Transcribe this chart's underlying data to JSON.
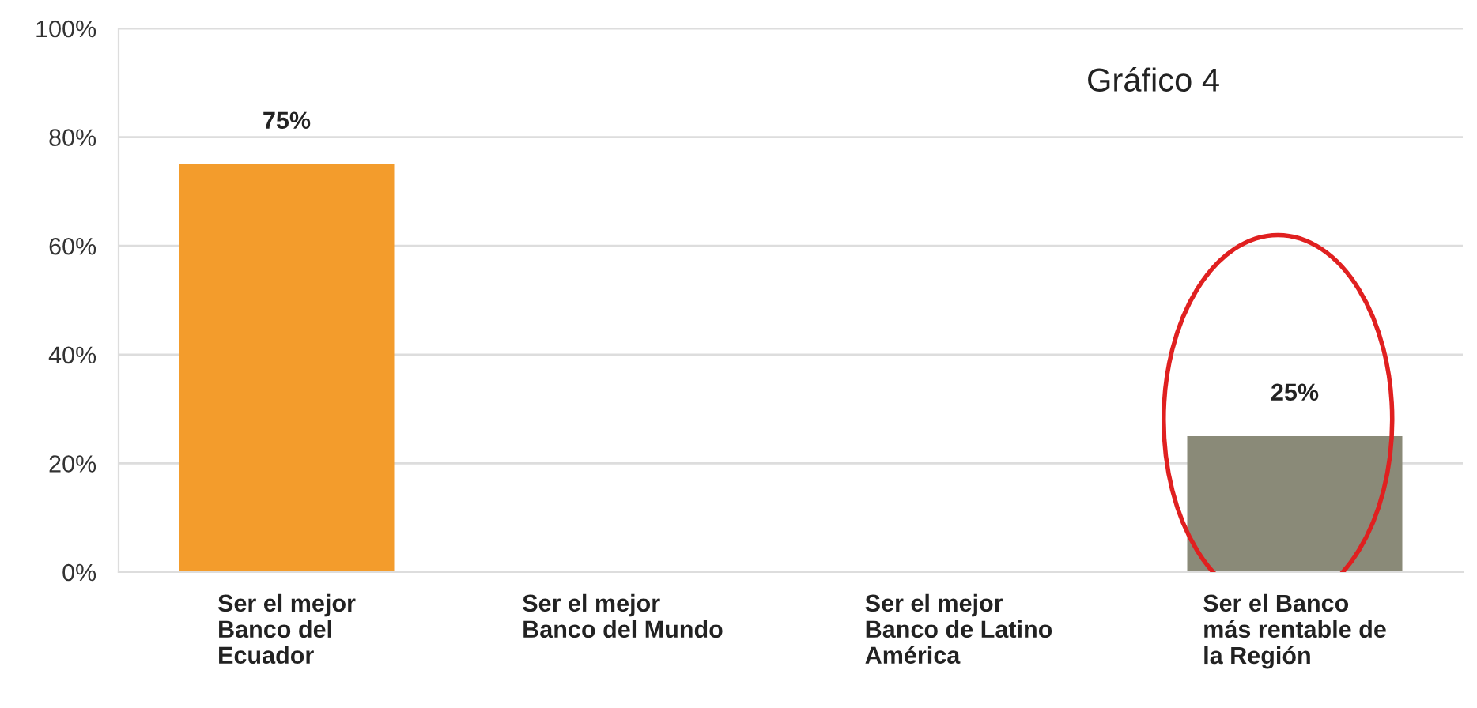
{
  "chart_data": {
    "type": "bar",
    "categories": [
      "Ser el mejor\nBanco del\nEcuador",
      "Ser el mejor\nBanco del Mundo",
      "Ser el mejor\nBanco de Latino\nAmérica",
      "Ser el Banco\nmás rentable de\nla Región"
    ],
    "values": [
      75,
      0,
      0,
      25
    ],
    "colors": [
      "#f39c2c",
      "#f39c2c",
      "#8a8a78",
      "#8a8a78"
    ],
    "value_labels": [
      "75%",
      null,
      null,
      "25%"
    ],
    "ylim": [
      0,
      100
    ],
    "yticks": [
      {
        "value": 0,
        "label": "0%"
      },
      {
        "value": 20,
        "label": "20%"
      },
      {
        "value": 40,
        "label": "40%"
      },
      {
        "value": 60,
        "label": "60%"
      },
      {
        "value": 80,
        "label": "80%"
      },
      {
        "value": 100,
        "label": "100%"
      }
    ],
    "grid": "y",
    "annotations": [
      "Gráfico 4"
    ]
  }
}
